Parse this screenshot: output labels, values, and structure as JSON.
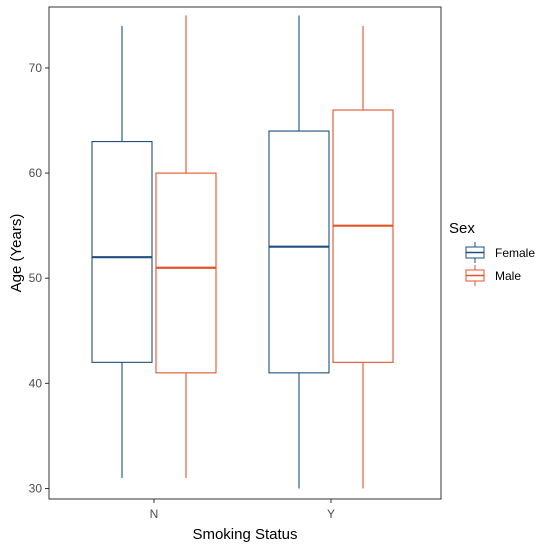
{
  "chart_data": {
    "type": "boxplot",
    "xlabel": "Smoking Status",
    "ylabel": "Age (Years)",
    "categories": [
      "N",
      "Y"
    ],
    "ylim": [
      29,
      75.8
    ],
    "yticks": [
      30,
      40,
      50,
      60,
      70
    ],
    "grid": false,
    "legend": {
      "title": "Sex",
      "position": "right",
      "entries": [
        "Female",
        "Male"
      ]
    },
    "series": [
      {
        "name": "Female",
        "color": "#1f4e7f",
        "boxes": [
          {
            "category": "N",
            "min": 31,
            "q1": 42,
            "median": 52,
            "q3": 63,
            "max": 74
          },
          {
            "category": "Y",
            "min": 30,
            "q1": 41,
            "median": 53,
            "q3": 64,
            "max": 75
          }
        ]
      },
      {
        "name": "Male",
        "color": "#e0542a",
        "boxes": [
          {
            "category": "N",
            "min": 31,
            "q1": 41,
            "median": 51,
            "q3": 60,
            "max": 75
          },
          {
            "category": "Y",
            "min": 30,
            "q1": 42,
            "median": 55,
            "q3": 66,
            "max": 74
          }
        ]
      }
    ]
  }
}
